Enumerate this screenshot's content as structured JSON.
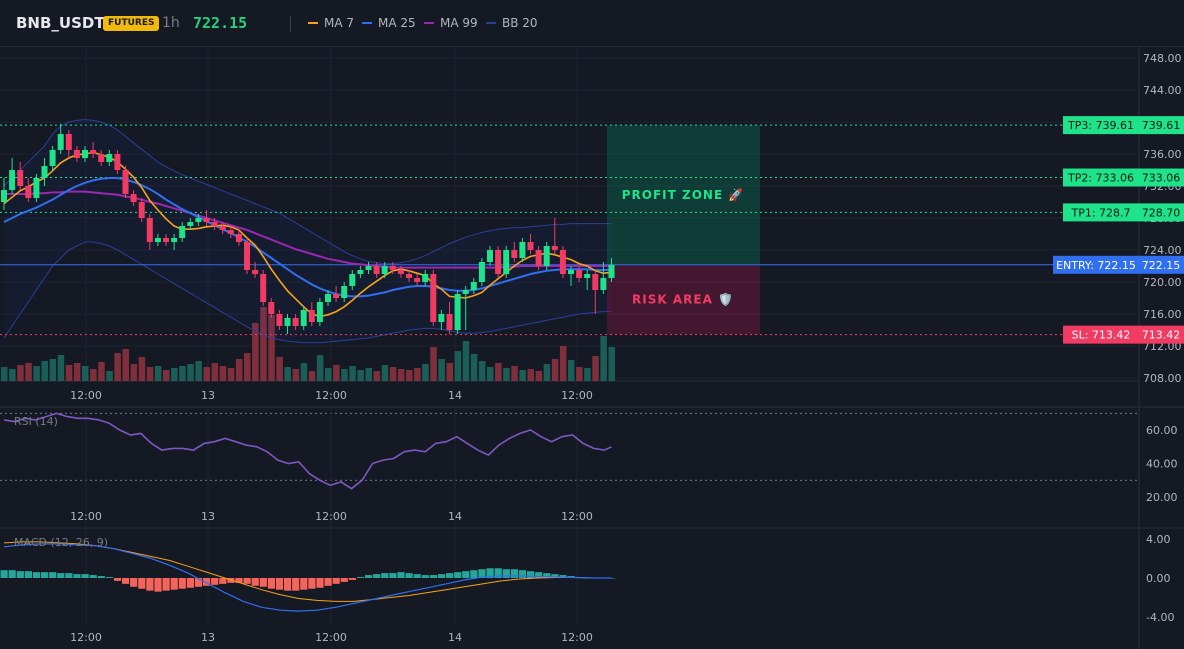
{
  "header": {
    "symbol": "BNB_USDT",
    "badge": "FUTURES",
    "timeframe": "1h",
    "price": "722.15",
    "legend": [
      {
        "label": "MA 7",
        "color": "#f7a21b"
      },
      {
        "label": "MA 25",
        "color": "#2f6ff0"
      },
      {
        "label": "MA 99",
        "color": "#9c27b0"
      },
      {
        "label": "BB 20",
        "color": "#2a3f9a"
      }
    ]
  },
  "colors": {
    "up": "#1ee38a",
    "down": "#f23b63",
    "vol_up": "#1b5e57",
    "vol_down": "#7e2f3b",
    "rsi": "#7e57c2",
    "macd": "#2f6ff0",
    "signal": "#f7a21b",
    "hist_up": "#26a69a",
    "hist_down": "#f5645a",
    "entry": "#2f6ff0",
    "tp": "#1ee38a",
    "sl": "#f23b63"
  },
  "chart_data": [
    {
      "type": "candlestick",
      "title": "",
      "x_ticks": [
        "12:00",
        "13",
        "12:00",
        "14",
        "12:00"
      ],
      "y_ticks": [
        "748.00",
        "744.00",
        "740.00",
        "736.00",
        "732.00",
        "728.00",
        "724.00",
        "720.00",
        "716.00",
        "712.00",
        "708.00"
      ],
      "ylim": [
        708,
        748
      ],
      "ohlc": [
        [
          730.0,
          733.0,
          729.0,
          731.5
        ],
        [
          731.5,
          735.5,
          731.0,
          734.0
        ],
        [
          734.0,
          735.0,
          731.5,
          732.0
        ],
        [
          732.0,
          733.0,
          730.0,
          730.5
        ],
        [
          730.5,
          733.5,
          730.0,
          733.0
        ],
        [
          733.0,
          735.5,
          732.0,
          734.5
        ],
        [
          734.5,
          737.0,
          734.0,
          736.5
        ],
        [
          736.5,
          739.8,
          736.0,
          738.5
        ],
        [
          738.5,
          739.0,
          735.5,
          736.5
        ],
        [
          736.5,
          737.0,
          735.0,
          735.5
        ],
        [
          735.5,
          737.0,
          735.0,
          736.5
        ],
        [
          736.5,
          737.5,
          735.5,
          736.0
        ],
        [
          736.0,
          736.5,
          734.5,
          735.0
        ],
        [
          735.0,
          736.5,
          734.5,
          736.0
        ],
        [
          736.0,
          736.5,
          733.5,
          734.0
        ],
        [
          734.0,
          734.5,
          730.5,
          731.0
        ],
        [
          731.0,
          731.5,
          729.5,
          730.0
        ],
        [
          730.0,
          730.5,
          727.5,
          728.0
        ],
        [
          728.0,
          728.5,
          724.0,
          725.0
        ],
        [
          725.0,
          726.0,
          724.5,
          725.5
        ],
        [
          725.5,
          726.0,
          724.5,
          725.0
        ],
        [
          725.0,
          726.0,
          724.0,
          725.5
        ],
        [
          725.5,
          727.5,
          725.0,
          727.0
        ],
        [
          727.0,
          728.0,
          726.5,
          727.5
        ],
        [
          727.5,
          728.5,
          727.0,
          728.0
        ],
        [
          728.0,
          729.0,
          727.0,
          727.5
        ],
        [
          727.5,
          728.0,
          726.5,
          727.0
        ],
        [
          727.0,
          727.5,
          726.0,
          726.5
        ],
        [
          726.5,
          727.0,
          725.5,
          726.0
        ],
        [
          726.0,
          726.5,
          724.5,
          725.0
        ],
        [
          725.0,
          725.5,
          721.0,
          721.5
        ],
        [
          721.5,
          722.5,
          720.5,
          721.0
        ],
        [
          721.0,
          721.5,
          717.0,
          717.5
        ],
        [
          717.5,
          718.0,
          715.5,
          716.0
        ],
        [
          716.0,
          716.5,
          714.0,
          714.5
        ],
        [
          714.5,
          716.0,
          713.5,
          715.5
        ],
        [
          715.5,
          716.0,
          714.0,
          714.5
        ],
        [
          714.5,
          717.0,
          714.0,
          716.5
        ],
        [
          716.5,
          717.5,
          714.5,
          715.0
        ],
        [
          715.0,
          718.0,
          714.5,
          717.5
        ],
        [
          717.5,
          719.0,
          717.0,
          718.5
        ],
        [
          718.5,
          719.5,
          717.5,
          718.0
        ],
        [
          718.0,
          720.0,
          717.5,
          719.5
        ],
        [
          719.5,
          721.5,
          719.0,
          721.0
        ],
        [
          721.0,
          722.0,
          720.5,
          721.5
        ],
        [
          721.5,
          722.5,
          721.0,
          722.0
        ],
        [
          722.0,
          722.5,
          720.5,
          721.0
        ],
        [
          721.0,
          722.5,
          720.5,
          722.0
        ],
        [
          722.0,
          722.5,
          721.0,
          721.5
        ],
        [
          721.5,
          722.0,
          720.5,
          721.0
        ],
        [
          721.0,
          721.5,
          720.0,
          720.5
        ],
        [
          720.5,
          721.0,
          719.5,
          720.0
        ],
        [
          720.0,
          721.5,
          719.5,
          721.0
        ],
        [
          721.0,
          721.5,
          714.5,
          715.0
        ],
        [
          715.0,
          716.5,
          714.0,
          716.0
        ],
        [
          716.0,
          717.5,
          713.5,
          714.0
        ],
        [
          714.0,
          719.0,
          713.5,
          718.5
        ],
        [
          718.5,
          719.5,
          714.0,
          719.0
        ],
        [
          719.0,
          720.5,
          718.5,
          720.0
        ],
        [
          720.0,
          723.0,
          719.5,
          722.5
        ],
        [
          722.5,
          724.5,
          722.0,
          724.0
        ],
        [
          724.0,
          724.5,
          720.5,
          721.0
        ],
        [
          721.0,
          724.5,
          720.5,
          724.0
        ],
        [
          724.0,
          725.0,
          722.5,
          723.0
        ],
        [
          723.0,
          725.5,
          722.5,
          725.0
        ],
        [
          725.0,
          726.0,
          723.5,
          724.0
        ],
        [
          724.0,
          724.5,
          721.5,
          722.0
        ],
        [
          722.0,
          725.0,
          721.5,
          724.5
        ],
        [
          724.5,
          728.0,
          723.5,
          724.0
        ],
        [
          724.0,
          724.5,
          720.5,
          721.0
        ],
        [
          721.0,
          722.0,
          719.5,
          721.5
        ],
        [
          721.5,
          722.0,
          720.0,
          720.5
        ],
        [
          720.5,
          721.5,
          719.0,
          721.0
        ],
        [
          721.0,
          721.5,
          716.0,
          719.0
        ],
        [
          719.0,
          722.5,
          718.5,
          720.5
        ],
        [
          720.5,
          723.0,
          720.0,
          722.15
        ]
      ],
      "volume": [
        14,
        12,
        16,
        18,
        15,
        20,
        22,
        26,
        16,
        18,
        15,
        12,
        19,
        10,
        28,
        32,
        17,
        24,
        14,
        15,
        11,
        13,
        15,
        17,
        20,
        14,
        18,
        15,
        13,
        22,
        28,
        58,
        74,
        66,
        24,
        14,
        12,
        18,
        10,
        26,
        13,
        16,
        12,
        15,
        11,
        13,
        10,
        16,
        14,
        12,
        11,
        13,
        17,
        34,
        22,
        18,
        30,
        40,
        27,
        20,
        14,
        18,
        13,
        15,
        11,
        12,
        10,
        17,
        22,
        35,
        21,
        14,
        13,
        25,
        45,
        34
      ],
      "ma7": [
        729.8,
        730.6,
        731.4,
        731.9,
        732.5,
        733.0,
        733.9,
        734.9,
        735.5,
        735.9,
        736.0,
        736.2,
        735.9,
        735.6,
        735.0,
        734.1,
        733.1,
        731.8,
        730.2,
        729.0,
        727.9,
        727.0,
        726.6,
        726.6,
        726.7,
        726.9,
        727.0,
        727.1,
        726.9,
        726.5,
        725.5,
        724.6,
        723.2,
        721.6,
        720.2,
        718.9,
        717.9,
        716.9,
        716.0,
        715.7,
        715.9,
        716.3,
        716.9,
        717.7,
        718.6,
        719.4,
        720.1,
        720.8,
        721.4,
        721.6,
        721.4,
        721.1,
        720.8,
        719.8,
        719.1,
        718.2,
        718.1,
        718.0,
        718.3,
        718.7,
        719.6,
        720.4,
        721.2,
        722.0,
        722.7,
        723.2,
        723.4,
        723.6,
        723.4,
        723.1,
        722.8,
        722.3,
        722.0,
        721.4,
        721.1,
        721.2
      ],
      "ma25": [
        727.5,
        728.0,
        728.5,
        728.9,
        729.3,
        729.8,
        730.3,
        730.9,
        731.5,
        732.0,
        732.4,
        732.7,
        732.9,
        733.0,
        733.0,
        732.8,
        732.5,
        732.1,
        731.6,
        731.0,
        730.3,
        729.7,
        729.1,
        728.6,
        728.1,
        727.6,
        727.1,
        726.6,
        726.1,
        725.6,
        725.0,
        724.4,
        723.7,
        723.0,
        722.3,
        721.6,
        720.9,
        720.3,
        719.7,
        719.2,
        718.8,
        718.5,
        718.3,
        718.2,
        718.2,
        718.3,
        718.5,
        718.7,
        719.0,
        719.2,
        719.4,
        719.5,
        719.5,
        719.4,
        719.2,
        719.0,
        718.9,
        718.9,
        719.0,
        719.2,
        719.5,
        719.8,
        720.1,
        720.4,
        720.7,
        721.0,
        721.2,
        721.4,
        721.5,
        721.6,
        721.6,
        721.6,
        721.6,
        721.5,
        721.5,
        721.5
      ],
      "ma99": [
        731.0,
        731.0,
        731.0,
        731.0,
        731.1,
        731.1,
        731.2,
        731.2,
        731.3,
        731.3,
        731.3,
        731.2,
        731.1,
        731.0,
        730.9,
        730.7,
        730.5,
        730.3,
        730.0,
        729.8,
        729.5,
        729.2,
        728.9,
        728.6,
        728.3,
        728.0,
        727.7,
        727.4,
        727.1,
        726.8,
        726.5,
        726.1,
        725.7,
        725.3,
        724.9,
        724.5,
        724.1,
        723.8,
        723.5,
        723.2,
        722.9,
        722.7,
        722.5,
        722.3,
        722.2,
        722.1,
        722.0,
        721.9,
        721.8,
        721.8,
        721.8,
        721.8,
        721.8,
        721.8,
        721.8,
        721.8,
        721.8,
        721.8,
        721.8,
        721.8,
        721.8,
        721.8,
        721.9,
        721.9,
        722.0,
        722.0,
        722.0,
        722.0,
        722.0,
        722.0,
        722.0,
        722.0,
        722.0,
        722.0,
        722.0,
        722.0
      ],
      "bb_upper": [
        732.0,
        733.0,
        734.0,
        735.0,
        736.0,
        737.0,
        738.5,
        739.5,
        740.0,
        740.2,
        740.3,
        740.2,
        740.0,
        739.6,
        739.0,
        738.2,
        737.4,
        736.6,
        735.8,
        735.0,
        734.4,
        733.9,
        733.4,
        733.0,
        732.6,
        732.2,
        731.8,
        731.4,
        731.0,
        730.6,
        730.2,
        729.8,
        729.4,
        729.0,
        728.6,
        728.0,
        727.4,
        726.8,
        726.2,
        725.6,
        725.0,
        724.4,
        723.8,
        723.3,
        722.9,
        722.6,
        722.4,
        722.3,
        722.3,
        722.4,
        722.6,
        722.9,
        723.3,
        723.8,
        724.3,
        724.8,
        725.2,
        725.6,
        725.9,
        726.2,
        726.4,
        726.6,
        726.7,
        726.8,
        726.8,
        726.9,
        727.0,
        727.1,
        727.2,
        727.2,
        727.3,
        727.3,
        727.3,
        727.3,
        727.3,
        727.3
      ],
      "bb_lower": [
        713.0,
        714.5,
        716.0,
        717.5,
        719.0,
        720.5,
        722.0,
        723.0,
        724.0,
        724.5,
        725.0,
        725.0,
        724.8,
        724.5,
        724.0,
        723.4,
        722.8,
        722.2,
        721.6,
        721.0,
        720.4,
        719.8,
        719.2,
        718.6,
        718.0,
        717.4,
        716.8,
        716.2,
        715.6,
        715.0,
        714.4,
        713.9,
        713.4,
        713.0,
        712.8,
        712.6,
        712.5,
        712.4,
        712.4,
        712.4,
        712.5,
        712.6,
        712.7,
        712.8,
        712.9,
        713.0,
        713.2,
        713.4,
        713.6,
        713.8,
        714.0,
        714.1,
        714.2,
        714.2,
        714.1,
        713.9,
        713.7,
        713.6,
        713.6,
        713.7,
        713.8,
        714.0,
        714.2,
        714.4,
        714.6,
        714.8,
        715.0,
        715.2,
        715.4,
        715.6,
        715.8,
        716.0,
        716.1,
        716.2,
        716.3,
        716.3
      ],
      "levels": [
        {
          "name": "tp3",
          "label": "TP3: 739.61",
          "value": 739.61,
          "price_label": "739.61"
        },
        {
          "name": "tp2",
          "label": "TP2: 733.06",
          "value": 733.06,
          "price_label": "733.06"
        },
        {
          "name": "tp1",
          "label": "TP1: 728.7",
          "value": 728.7,
          "price_label": "728.70"
        },
        {
          "name": "entry",
          "label": "ENTRY: 722.15",
          "value": 722.15,
          "price_label": "722.15"
        },
        {
          "name": "sl",
          "label": "SL: 713.42",
          "value": 713.42,
          "price_label": "713.42"
        }
      ],
      "annotations": [
        {
          "name": "profit-zone",
          "text": "PROFIT ZONE 🚀",
          "top": 739.61,
          "bottom": 722.15
        },
        {
          "name": "risk-area",
          "text": "RISK AREA 🛡️",
          "top": 722.15,
          "bottom": 713.42
        }
      ]
    },
    {
      "type": "line",
      "title": "RSI (14)",
      "y_ticks": [
        "60.00",
        "40.00",
        "20.00"
      ],
      "ylim": [
        15,
        76
      ],
      "bands": [
        70,
        30
      ],
      "x_ticks": [
        "12:00",
        "13",
        "12:00",
        "14",
        "12:00"
      ],
      "values": [
        66,
        65,
        67,
        66,
        68,
        70,
        68,
        67,
        67,
        66,
        64,
        60,
        57,
        58,
        52,
        48,
        49,
        49,
        48,
        52,
        53,
        55,
        53,
        51,
        50,
        47,
        42,
        40,
        41,
        34,
        30,
        27,
        29,
        25,
        30,
        40,
        42,
        43,
        47,
        48,
        47,
        52,
        53,
        56,
        52,
        48,
        45,
        51,
        55,
        58,
        60,
        56,
        53,
        56,
        57,
        52,
        49,
        48,
        50
      ],
      "x_index": [
        0,
        1.3,
        2.6,
        3.9,
        5.2,
        6.5,
        7.8,
        9.1,
        10.4,
        11.7,
        13,
        14.3,
        15.6,
        16.9,
        18.2,
        19.5,
        20.8,
        22.1,
        23.4,
        24.7,
        26,
        27.3,
        28.6,
        29.9,
        31.2,
        32.5,
        33.8,
        35.1,
        36.4,
        37.7,
        39,
        40.3,
        41.6,
        42.9,
        44.2,
        45.5,
        46.8,
        48.1,
        49.4,
        50.7,
        52,
        53.3,
        54.6,
        55.9,
        57.2,
        58.5,
        59.8,
        61.1,
        62.4,
        63.7,
        65,
        66.3,
        67.6,
        68.9,
        70.2,
        71.5,
        72.8,
        74.1,
        75
      ]
    },
    {
      "type": "bar",
      "title": "MACD (12, 26, 9)",
      "y_ticks": [
        "4.00",
        "0.00",
        "-4.00"
      ],
      "ylim": [
        -5,
        5
      ],
      "x_ticks": [
        "12:00",
        "13",
        "12:00",
        "14",
        "12:00"
      ],
      "histogram": [
        0.8,
        0.8,
        0.7,
        0.7,
        0.6,
        0.6,
        0.6,
        0.5,
        0.5,
        0.4,
        0.4,
        0.3,
        0.2,
        0.1,
        -0.3,
        -0.6,
        -0.9,
        -1.1,
        -1.3,
        -1.4,
        -1.3,
        -1.2,
        -1.1,
        -1.0,
        -0.9,
        -0.8,
        -0.7,
        -0.6,
        -0.5,
        -0.5,
        -0.6,
        -0.8,
        -0.9,
        -1.1,
        -1.2,
        -1.3,
        -1.3,
        -1.2,
        -1.1,
        -1.0,
        -0.8,
        -0.6,
        -0.4,
        -0.2,
        0.1,
        0.3,
        0.4,
        0.5,
        0.5,
        0.6,
        0.5,
        0.4,
        0.3,
        0.3,
        0.4,
        0.5,
        0.6,
        0.7,
        0.8,
        0.9,
        1.0,
        1.0,
        0.9,
        0.9,
        0.8,
        0.7,
        0.6,
        0.5,
        0.4,
        0.3,
        0.2,
        0.1,
        0.0,
        0.0,
        0.0,
        0.0
      ],
      "macd": [
        3.2,
        3.4,
        3.5,
        3.5,
        3.4,
        3.3,
        3.0,
        2.5,
        2.0,
        1.3,
        0.5,
        -0.5,
        -1.5,
        -2.4,
        -3.0,
        -3.3,
        -3.4,
        -3.3,
        -3.0,
        -2.6,
        -2.2,
        -1.8,
        -1.4,
        -1.0,
        -0.6,
        -0.2,
        0.1,
        0.2,
        0.2,
        0.15,
        0.1,
        0.05,
        0.0,
        0.0
      ],
      "signal": [
        3.6,
        3.7,
        3.7,
        3.6,
        3.5,
        3.3,
        3.0,
        2.6,
        2.2,
        1.8,
        1.2,
        0.6,
        0.0,
        -0.6,
        -1.2,
        -1.7,
        -2.1,
        -2.3,
        -2.4,
        -2.4,
        -2.2,
        -2.0,
        -1.8,
        -1.5,
        -1.2,
        -0.9,
        -0.6,
        -0.3,
        -0.1,
        0.0,
        0.05,
        0.05,
        0.0,
        0.0
      ]
    }
  ]
}
